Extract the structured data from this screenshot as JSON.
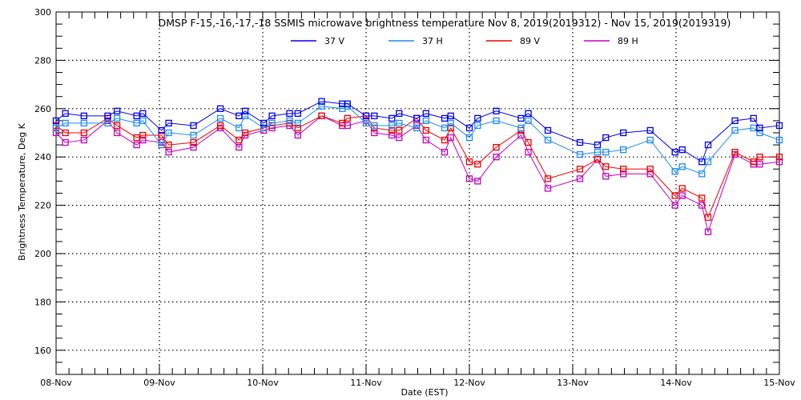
{
  "chart_data": {
    "type": "line",
    "title": "DMSP F-15,-16,-17,-18 SSMIS microwave brightness temperature Nov  8, 2019(2019312) - Nov 15, 2019(2019319)",
    "xlabel": "Date (EST)",
    "ylabel": "Brightness Temperature, Deg K",
    "ylim": [
      150,
      300
    ],
    "xlim_days": [
      0,
      7
    ],
    "yticks": [
      "160",
      "180",
      "200",
      "220",
      "240",
      "260",
      "280",
      "300"
    ],
    "xticks": [
      "08-Nov",
      "09-Nov",
      "10-Nov",
      "11-Nov",
      "12-Nov",
      "13-Nov",
      "14-Nov",
      "15-Nov"
    ],
    "grid": true,
    "legend_position": "top-center",
    "x_days": [
      0,
      0.09,
      0.27,
      0.5,
      0.59,
      0.78,
      0.84,
      1.02,
      1.09,
      1.33,
      1.59,
      1.77,
      1.83,
      2.01,
      2.09,
      2.26,
      2.34,
      2.57,
      2.77,
      2.82,
      3.0,
      3.08,
      3.25,
      3.32,
      3.49,
      3.58,
      3.76,
      3.82,
      4.0,
      4.08,
      4.26,
      4.5,
      4.57,
      4.76,
      5.07,
      5.24,
      5.32,
      5.49,
      5.75,
      5.99,
      6.06,
      6.25,
      6.31,
      6.57,
      6.75,
      6.81,
      7.0
    ],
    "series": [
      {
        "name": "37 V",
        "color": "#0000ee",
        "values": [
          255,
          258,
          257,
          257,
          259,
          257,
          258,
          251,
          254,
          253,
          260,
          257,
          259,
          254,
          257,
          258,
          258,
          263,
          262,
          262,
          257,
          257,
          256,
          258,
          256,
          258,
          256,
          257,
          252,
          256,
          259,
          256,
          258,
          251,
          246,
          245,
          248,
          250,
          251,
          242,
          243,
          238,
          245,
          255,
          256,
          252,
          253
        ]
      },
      {
        "name": "37 H",
        "color": "#1e8cf0",
        "values": [
          252,
          254,
          254,
          254,
          256,
          254,
          255,
          245,
          250,
          249,
          256,
          252,
          257,
          252,
          254,
          255,
          254,
          261,
          260,
          261,
          254,
          253,
          253,
          254,
          252,
          255,
          252,
          254,
          248,
          253,
          255,
          252,
          255,
          247,
          241,
          242,
          242,
          243,
          247,
          234,
          236,
          233,
          238,
          251,
          252,
          250,
          247
        ]
      },
      {
        "name": "89 V",
        "color": "#ee0000",
        "values": [
          253,
          250,
          250,
          256,
          253,
          248,
          249,
          249,
          245,
          246,
          253,
          247,
          250,
          252,
          253,
          254,
          252,
          257,
          254,
          256,
          257,
          252,
          251,
          251,
          256,
          251,
          247,
          252,
          238,
          237,
          244,
          251,
          246,
          231,
          235,
          239,
          236,
          235,
          235,
          224,
          227,
          223,
          215,
          242,
          238,
          240,
          240
        ]
      },
      {
        "name": "89 H",
        "color": "#c000c0",
        "values": [
          250,
          246,
          247,
          255,
          250,
          245,
          247,
          246,
          242,
          244,
          252,
          244,
          249,
          251,
          252,
          253,
          249,
          257,
          253,
          253,
          255,
          250,
          249,
          248,
          253,
          247,
          242,
          248,
          231,
          230,
          240,
          249,
          242,
          227,
          231,
          239,
          232,
          233,
          233,
          220,
          224,
          220,
          209,
          241,
          237,
          237,
          238
        ]
      }
    ]
  }
}
